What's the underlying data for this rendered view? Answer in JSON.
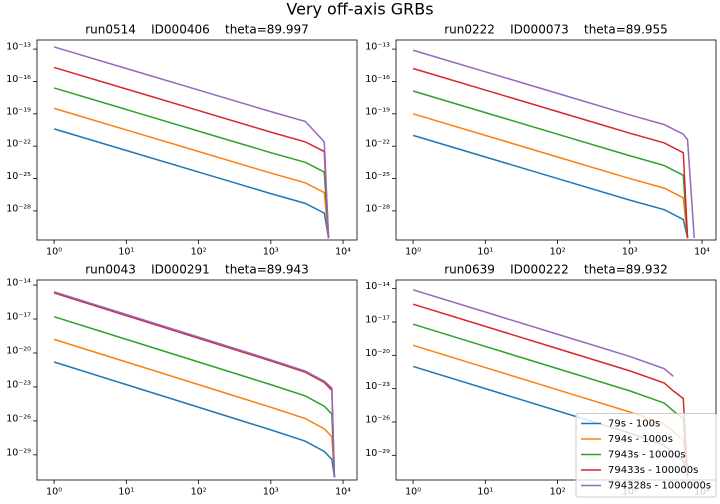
{
  "title": "Very off-axis GRBs",
  "chart_data": [
    {
      "type": "line",
      "title": "run0514    ID000406    theta=89.997",
      "xscale": "log",
      "yscale": "log",
      "x": [
        1,
        10,
        100,
        1000,
        3000,
        5500,
        6300
      ],
      "xlim": [
        0.58,
        15600
      ],
      "ylim": [
        2e-31,
        7e-13
      ],
      "xticks": [
        {
          "value": 1,
          "label": "10⁰"
        },
        {
          "value": 10,
          "label": "10¹"
        },
        {
          "value": 100,
          "label": "10²"
        },
        {
          "value": 1000,
          "label": "10³"
        },
        {
          "value": 10000,
          "label": "10⁴"
        }
      ],
      "yticks": [
        {
          "value": 1e-28,
          "label": "10⁻²⁸"
        },
        {
          "value": 1e-25,
          "label": "10⁻²⁵"
        },
        {
          "value": 1e-22,
          "label": "10⁻²²"
        },
        {
          "value": 1e-19,
          "label": "10⁻¹⁹"
        },
        {
          "value": 1e-16,
          "label": "10⁻¹⁶"
        },
        {
          "value": 1e-13,
          "label": "10⁻¹³"
        }
      ],
      "series": [
        {
          "color": "#1f77b4",
          "values": [
            4e-21,
            4e-23,
            4e-25,
            4e-27,
            5e-28,
            6.3e-29,
            3e-31
          ]
        },
        {
          "color": "#ff7f0e",
          "values": [
            3.2e-19,
            3.2e-21,
            3.2e-23,
            3.2e-25,
            4e-26,
            5e-27,
            3e-31
          ]
        },
        {
          "color": "#2ca02c",
          "values": [
            2.5e-17,
            2.5e-19,
            2.5e-21,
            2.5e-23,
            3.2e-24,
            4e-25,
            3e-31
          ]
        },
        {
          "color": "#d62728",
          "values": [
            2e-15,
            2e-17,
            2e-19,
            2e-21,
            2.5e-22,
            3.2e-23,
            3e-31
          ]
        },
        {
          "color": "#9467bd",
          "values": [
            1.6e-13,
            1.6e-15,
            1.6e-17,
            1.6e-19,
            2e-20,
            2.5e-22,
            3e-31
          ]
        }
      ]
    },
    {
      "type": "line",
      "title": "run0222    ID000073    theta=89.955",
      "xscale": "log",
      "yscale": "log",
      "x": [
        1,
        10,
        100,
        1000,
        3000,
        5500,
        6300,
        7800
      ],
      "xlim": [
        0.58,
        15600
      ],
      "ylim": [
        2e-31,
        7e-13
      ],
      "xticks": [
        {
          "value": 1,
          "label": "10⁰"
        },
        {
          "value": 10,
          "label": "10¹"
        },
        {
          "value": 100,
          "label": "10²"
        },
        {
          "value": 1000,
          "label": "10³"
        },
        {
          "value": 10000,
          "label": "10⁴"
        }
      ],
      "yticks": [
        {
          "value": 1e-28,
          "label": "10⁻²⁸"
        },
        {
          "value": 1e-25,
          "label": "10⁻²⁵"
        },
        {
          "value": 1e-22,
          "label": "10⁻²²"
        },
        {
          "value": 1e-19,
          "label": "10⁻¹⁹"
        },
        {
          "value": 1e-16,
          "label": "10⁻¹⁶"
        },
        {
          "value": 1e-13,
          "label": "10⁻¹³"
        }
      ],
      "series": [
        {
          "color": "#1f77b4",
          "values": [
            1e-21,
            1e-23,
            1e-25,
            1e-27,
            1.3e-28,
            1.6e-29,
            3e-31,
            null
          ]
        },
        {
          "color": "#ff7f0e",
          "values": [
            1e-19,
            1e-21,
            1e-23,
            1e-25,
            1.3e-26,
            1.6e-27,
            3e-31,
            null
          ]
        },
        {
          "color": "#2ca02c",
          "values": [
            1.3e-17,
            1.3e-19,
            1.3e-21,
            1.3e-23,
            1.6e-24,
            2e-25,
            3e-31,
            null
          ]
        },
        {
          "color": "#d62728",
          "values": [
            1.6e-15,
            1.6e-17,
            1.6e-19,
            1.6e-21,
            2e-22,
            2.5e-23,
            3e-31,
            null
          ]
        },
        {
          "color": "#9467bd",
          "values": [
            7.9e-14,
            7.9e-16,
            7.9e-18,
            7.9e-20,
            1e-20,
            1.3e-21,
            4e-22,
            3e-31
          ]
        }
      ]
    },
    {
      "type": "line",
      "title": "run0043    ID000291    theta=89.943",
      "xscale": "log",
      "yscale": "log",
      "x": [
        1,
        10,
        100,
        1000,
        3000,
        5500,
        7000,
        7600
      ],
      "xlim": [
        0.58,
        15600
      ],
      "ylim": [
        6e-32,
        2.8e-14
      ],
      "xticks": [
        {
          "value": 1,
          "label": "10⁰"
        },
        {
          "value": 10,
          "label": "10¹"
        },
        {
          "value": 100,
          "label": "10²"
        },
        {
          "value": 1000,
          "label": "10³"
        },
        {
          "value": 10000,
          "label": "10⁴"
        }
      ],
      "yticks": [
        {
          "value": 1e-29,
          "label": "10⁻²⁹"
        },
        {
          "value": 1e-26,
          "label": "10⁻²⁶"
        },
        {
          "value": 1e-23,
          "label": "10⁻²³"
        },
        {
          "value": 1e-20,
          "label": "10⁻²⁰"
        },
        {
          "value": 1e-17,
          "label": "10⁻¹⁷"
        },
        {
          "value": 1e-14,
          "label": "10⁻¹⁴"
        }
      ],
      "series": [
        {
          "color": "#1f77b4",
          "values": [
            1.6e-21,
            1.6e-23,
            1.6e-25,
            1.6e-27,
            1.6e-28,
            2e-29,
            4e-30,
            1e-31
          ]
        },
        {
          "color": "#ff7f0e",
          "values": [
            1.6e-19,
            1.6e-21,
            1.6e-23,
            1.6e-25,
            1.6e-26,
            2e-27,
            4e-28,
            1e-31
          ]
        },
        {
          "color": "#2ca02c",
          "values": [
            1.6e-17,
            1.6e-19,
            1.6e-21,
            1.6e-23,
            1.6e-24,
            2e-25,
            4e-26,
            1e-31
          ]
        },
        {
          "color": "#d62728",
          "values": [
            2e-15,
            2e-17,
            2e-19,
            2e-21,
            2e-22,
            2.5e-23,
            5e-24,
            1e-31
          ]
        },
        {
          "color": "#9467bd",
          "values": [
            2.5e-15,
            2.5e-17,
            2.5e-19,
            2.5e-21,
            2.5e-22,
            3.2e-23,
            7.9e-24,
            1e-31
          ]
        }
      ]
    },
    {
      "type": "line",
      "title": "run0639    ID000222    theta=89.932",
      "xscale": "log",
      "yscale": "log",
      "legend": "lower right",
      "x": [
        1,
        10,
        100,
        1000,
        3000,
        4000,
        5500,
        6300
      ],
      "xlim": [
        0.58,
        15600
      ],
      "ylim": [
        6e-32,
        6e-14
      ],
      "xticks": [
        {
          "value": 1,
          "label": "10⁰"
        },
        {
          "value": 10,
          "label": "10¹"
        },
        {
          "value": 100,
          "label": "10²"
        },
        {
          "value": 1000,
          "label": "10³"
        },
        {
          "value": 10000,
          "label": "10⁴"
        }
      ],
      "yticks": [
        {
          "value": 1e-29,
          "label": "10⁻²⁹"
        },
        {
          "value": 1e-26,
          "label": "10⁻²⁶"
        },
        {
          "value": 1e-23,
          "label": "10⁻²³"
        },
        {
          "value": 1e-20,
          "label": "10⁻²⁰"
        },
        {
          "value": 1e-17,
          "label": "10⁻¹⁷"
        },
        {
          "value": 1e-14,
          "label": "10⁻¹⁴"
        }
      ],
      "series": [
        {
          "name": "79s - 100s",
          "color": "#1f77b4",
          "values": [
            1e-21,
            1e-23,
            1e-25,
            1e-27,
            7.9e-29,
            1.6e-29,
            3.2e-30,
            1e-31
          ]
        },
        {
          "name": "794s - 1000s",
          "color": "#ff7f0e",
          "values": [
            7.9e-20,
            7.9e-22,
            7.9e-24,
            7.9e-26,
            6.3e-27,
            1.3e-27,
            2.5e-28,
            1e-31
          ]
        },
        {
          "name": "7943s - 10000s",
          "color": "#2ca02c",
          "values": [
            6.3e-18,
            6.3e-20,
            6.3e-22,
            6.3e-24,
            5e-25,
            1e-25,
            2e-26,
            1e-31
          ]
        },
        {
          "name": "79433s - 100000s",
          "color": "#d62728",
          "values": [
            4e-16,
            4e-18,
            4e-20,
            4e-22,
            3.2e-23,
            6.3e-24,
            1.3e-24,
            1e-31
          ]
        },
        {
          "name": "794328s - 1000000s",
          "color": "#9467bd",
          "values": [
            7.9e-15,
            7.9e-17,
            7.9e-19,
            7.9e-21,
            6.3e-22,
            1.3e-22,
            null,
            null
          ]
        }
      ]
    }
  ]
}
